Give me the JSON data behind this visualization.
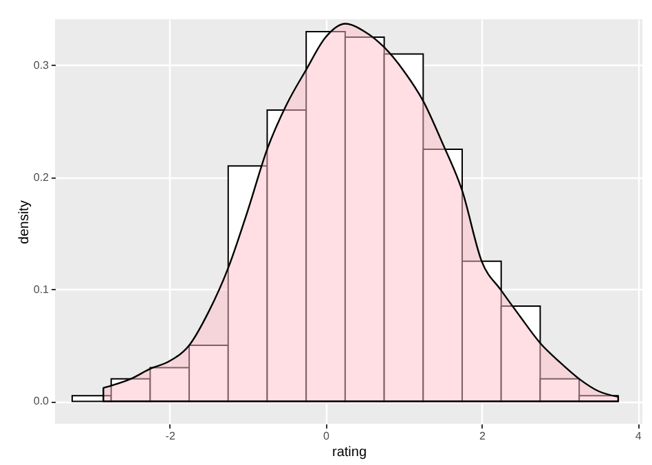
{
  "chart_data": {
    "type": "histogram",
    "xlabel": "rating",
    "ylabel": "density",
    "bins": [
      -3.25,
      -2.75,
      -2.25,
      -1.75,
      -1.25,
      -0.75,
      -0.25,
      0.25,
      0.75,
      1.25,
      1.75,
      2.25,
      2.75,
      3.25,
      3.75
    ],
    "series": [
      {
        "type": "histogram",
        "color": "#ffffff",
        "values": [
          0.005,
          0.02,
          0.03,
          0.05,
          0.21,
          0.26,
          0.33,
          0.325,
          0.31,
          0.225,
          0.125,
          0.085,
          0.02,
          0.005
        ]
      },
      {
        "type": "area",
        "color": "#ffc0c8",
        "x": [
          -2.85,
          -2.75,
          -2.5,
          -2.25,
          -2.0,
          -1.75,
          -1.5,
          -1.25,
          -1.0,
          -0.75,
          -0.5,
          -0.25,
          0.0,
          0.25,
          0.5,
          0.75,
          1.0,
          1.25,
          1.5,
          1.75,
          2.0,
          2.25,
          2.5,
          2.75,
          3.0,
          3.25,
          3.5,
          3.75
        ],
        "values": [
          0.012,
          0.014,
          0.02,
          0.029,
          0.036,
          0.05,
          0.08,
          0.119,
          0.17,
          0.225,
          0.265,
          0.296,
          0.325,
          0.337,
          0.33,
          0.316,
          0.295,
          0.268,
          0.23,
          0.188,
          0.125,
          0.099,
          0.075,
          0.052,
          0.035,
          0.02,
          0.009,
          0.004
        ]
      }
    ],
    "xlim": [
      -3.47,
      4.06
    ],
    "ylim": [
      -0.02,
      0.341
    ],
    "xticks": [
      -2,
      0,
      2,
      4
    ],
    "yticks": [
      {
        "value": 0,
        "label": "0.0"
      },
      0.1,
      0.2,
      0.3
    ],
    "grid": true
  }
}
